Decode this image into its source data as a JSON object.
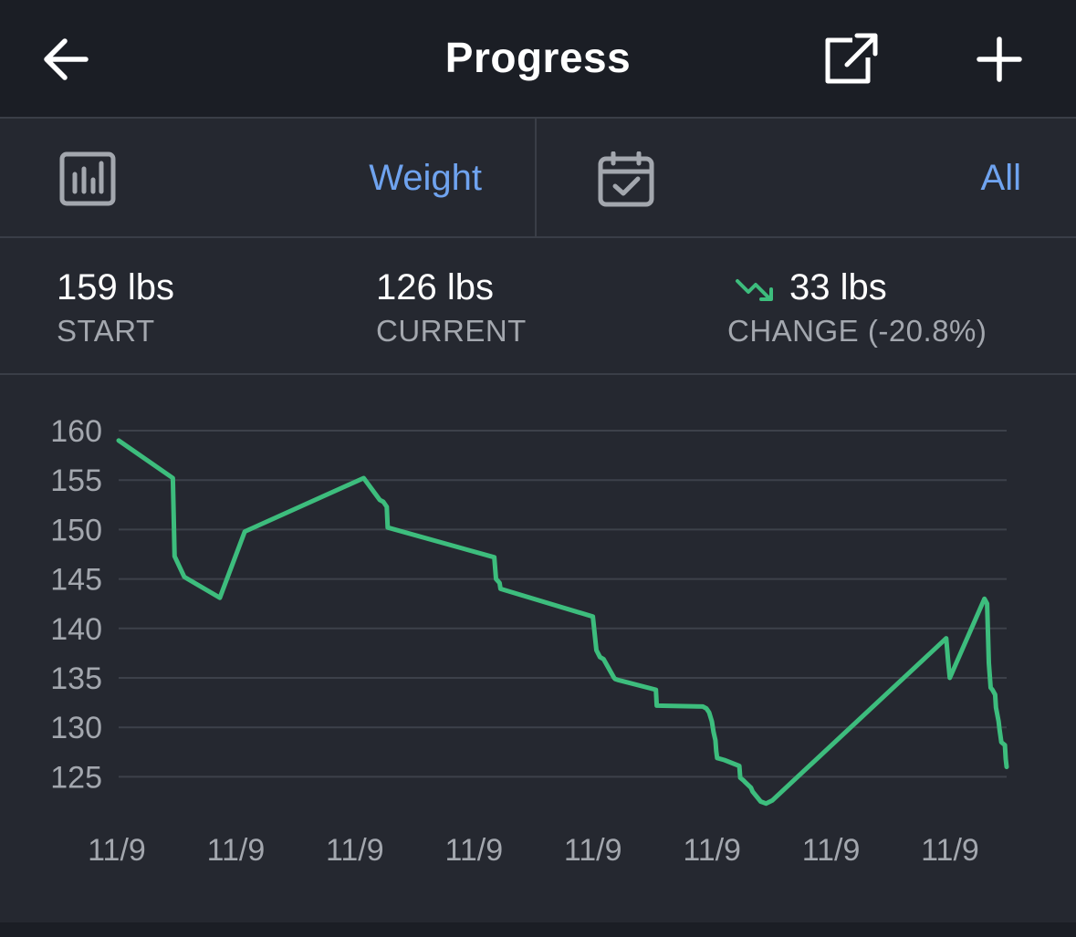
{
  "header": {
    "title": "Progress",
    "back_icon": "arrow-left-icon",
    "share_icon": "external-link-icon",
    "add_icon": "plus-icon"
  },
  "selectors": {
    "metric": {
      "icon": "bar-chart-icon",
      "value": "Weight"
    },
    "range": {
      "icon": "calendar-check-icon",
      "value": "All"
    }
  },
  "stats": {
    "start": {
      "value": "159 lbs",
      "label": "START"
    },
    "current": {
      "value": "126 lbs",
      "label": "CURRENT"
    },
    "change": {
      "value": "33 lbs",
      "label": "CHANGE (-20.8%)",
      "icon": "trend-down-icon"
    }
  },
  "colors": {
    "line": "#3dbd7d",
    "accent": "#6fa3ef",
    "background": "#252830",
    "header_background": "#1b1e25",
    "grid": "#3d414a",
    "muted_text": "#a3a7ae"
  },
  "chart_data": {
    "type": "line",
    "ylim": [
      122,
      160
    ],
    "y_ticks": [
      160,
      155,
      150,
      145,
      140,
      135,
      130,
      125
    ],
    "x_tick_labels": [
      "11/9",
      "11/9",
      "11/9",
      "11/9",
      "11/9",
      "11/9",
      "11/9",
      "11/9"
    ],
    "grid": true,
    "series": [
      {
        "x": [
          0,
          6.1,
          6.3,
          7.4,
          11.4,
          14.2,
          27.6,
          29.4,
          29.8,
          30.2,
          30.3,
          42.3,
          42.5,
          42.9,
          43.0,
          53.4,
          53.8,
          54.2,
          54.6,
          55.8,
          55.9,
          56.2,
          60.5,
          60.6,
          65.8,
          66.2,
          66.5,
          66.8,
          67.0,
          67.2,
          67.3,
          67.4,
          68.2,
          69.9,
          70.0,
          70.4,
          70.5,
          71.2,
          71.4,
          72.3,
          72.9,
          73.6,
          93.2,
          93.4,
          93.6,
          97.5,
          97.8,
          98.0,
          98.2,
          98.4,
          98.7,
          98.8,
          99.1,
          99.2,
          99.4,
          99.8,
          99.9,
          100
        ],
        "y": [
          159,
          155.2,
          147.3,
          145.2,
          143.1,
          149.8,
          155.2,
          153.0,
          152.8,
          152.3,
          150.2,
          147.2,
          145.0,
          144.6,
          144.0,
          141.2,
          137.8,
          137.1,
          136.9,
          135.0,
          134.9,
          134.8,
          133.8,
          132.2,
          132.1,
          131.9,
          131.5,
          130.6,
          129.5,
          128.7,
          127.6,
          126.9,
          126.7,
          126.1,
          124.9,
          124.6,
          124.5,
          123.9,
          123.5,
          122.5,
          122.3,
          122.6,
          139.0,
          136.8,
          135.0,
          143.0,
          142.5,
          136.5,
          134.0,
          133.8,
          133.3,
          132.0,
          130.6,
          129.8,
          128.5,
          128.2,
          126.8,
          126.0
        ]
      }
    ]
  }
}
